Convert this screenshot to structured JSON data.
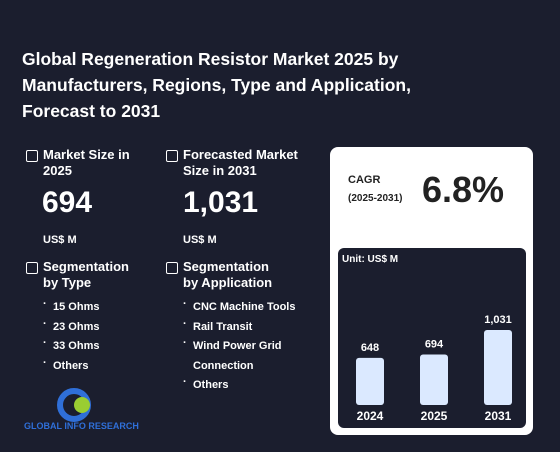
{
  "title": "Global Regeneration Resistor Market 2025 by Manufacturers, Regions, Type and Application, Forecast to 2031",
  "market_size": {
    "label": "Market Size in 2025",
    "value": "694",
    "unit": "US$ M"
  },
  "forecast": {
    "label": "Forecasted Market Size in 2031",
    "value": "1,031",
    "unit": "US$ M"
  },
  "segment_type": {
    "label": "Segmentation by Type",
    "items": [
      "15 Ohms",
      "23 Ohms",
      "33 Ohms",
      "Others"
    ]
  },
  "segment_app": {
    "label": "Segmentation by Application",
    "items": [
      "CNC Machine Tools",
      "Rail Transit",
      "Wind Power Grid Connection",
      "Others"
    ]
  },
  "cagr": {
    "label": "CAGR",
    "period": "(2025-2031)",
    "value": "6.8%"
  },
  "chart_data": {
    "type": "bar",
    "unit": "Unit: US$ M",
    "categories": [
      "2024",
      "2025",
      "2031"
    ],
    "values": [
      648,
      694,
      1031
    ],
    "value_labels": [
      "648",
      "694",
      "1,031"
    ],
    "color": "#dbe9ff"
  },
  "logo": "GLOBAL INFO RESEARCH"
}
